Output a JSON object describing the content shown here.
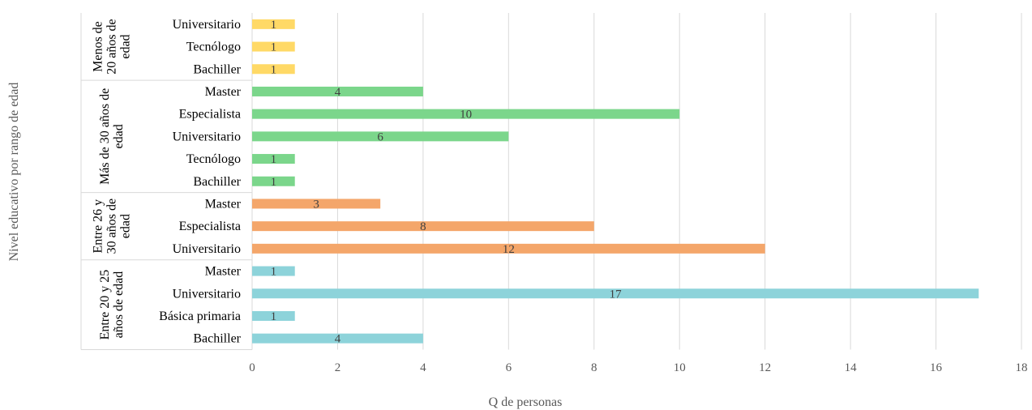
{
  "chart_data": {
    "type": "bar",
    "orientation": "horizontal",
    "xlabel": "Q de personas",
    "ylabel": "Nivel educativo por rango de edad",
    "xlim": [
      0,
      18
    ],
    "xticks": [
      0,
      2,
      4,
      6,
      8,
      10,
      12,
      14,
      16,
      18
    ],
    "grid": true,
    "legend": "none",
    "groups": [
      {
        "label": "Menos de 20 años de edad",
        "label_lines": [
          "Menos de",
          "20 años de",
          "edad"
        ],
        "color": "#FFD966",
        "categories": [
          "Universitario",
          "Tecnólogo",
          "Bachiller"
        ],
        "values": [
          1,
          1,
          1
        ]
      },
      {
        "label": "Más de 30 años de edad",
        "label_lines": [
          "Más de 30 años de",
          "edad"
        ],
        "color": "#7BD68B",
        "categories": [
          "Master",
          "Especialista",
          "Universitario",
          "Tecnólogo",
          "Bachiller"
        ],
        "values": [
          4,
          10,
          6,
          1,
          1
        ]
      },
      {
        "label": "Entre 26 y 30 años de edad",
        "label_lines": [
          "Entre 26 y",
          "30 años de",
          "edad"
        ],
        "color": "#F4A66A",
        "categories": [
          "Master",
          "Especialista",
          "Universitario"
        ],
        "values": [
          3,
          8,
          12
        ]
      },
      {
        "label": "Entre 20 y 25 años de edad",
        "label_lines": [
          "Entre 20 y 25",
          "años de edad"
        ],
        "color": "#8DD3DA",
        "categories": [
          "Master",
          "Universitario",
          "Básica primaria",
          "Bachiller"
        ],
        "values": [
          1,
          17,
          1,
          4
        ]
      }
    ]
  }
}
